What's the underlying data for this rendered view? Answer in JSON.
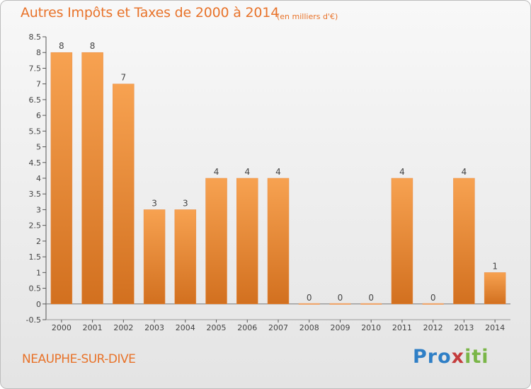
{
  "chart_data": {
    "type": "bar",
    "title": "Autres Impôts et Taxes de 2000 à 2014",
    "subtitle": "(en milliers d'€)",
    "categories": [
      "2000",
      "2001",
      "2002",
      "2003",
      "2004",
      "2005",
      "2006",
      "2007",
      "2008",
      "2009",
      "2010",
      "2011",
      "2012",
      "2013",
      "2014"
    ],
    "values": [
      8,
      8,
      7,
      3,
      3,
      4,
      4,
      4,
      0,
      0,
      0,
      4,
      0,
      4,
      1
    ],
    "value_labels": [
      "8",
      "8",
      "7",
      "3",
      "3",
      "4",
      "4",
      "4",
      "0",
      "0",
      "0",
      "4",
      "0",
      "4",
      "1"
    ],
    "ylim": [
      -0.5,
      8.5
    ],
    "yticks": [
      "8.5",
      "8",
      "7.5",
      "7",
      "6.5",
      "6",
      "5.5",
      "5",
      "4.5",
      "4",
      "3.5",
      "3",
      "2.5",
      "2",
      "1.5",
      "1",
      "0.5",
      "0",
      "-0.5"
    ],
    "ytick_values": [
      8.5,
      8,
      7.5,
      7,
      6.5,
      6,
      5.5,
      5,
      4.5,
      4,
      3.5,
      3,
      2.5,
      2,
      1.5,
      1,
      0.5,
      0,
      -0.5
    ],
    "xlabel": "",
    "ylabel": "",
    "grid": false,
    "bar_color": "#f0923e",
    "bar_color_dark": "#d2701f"
  },
  "location": "NEAUPHE-SUR-DIVE",
  "logo": {
    "p1": "Pro",
    "p2": "x",
    "p3": "iti"
  }
}
